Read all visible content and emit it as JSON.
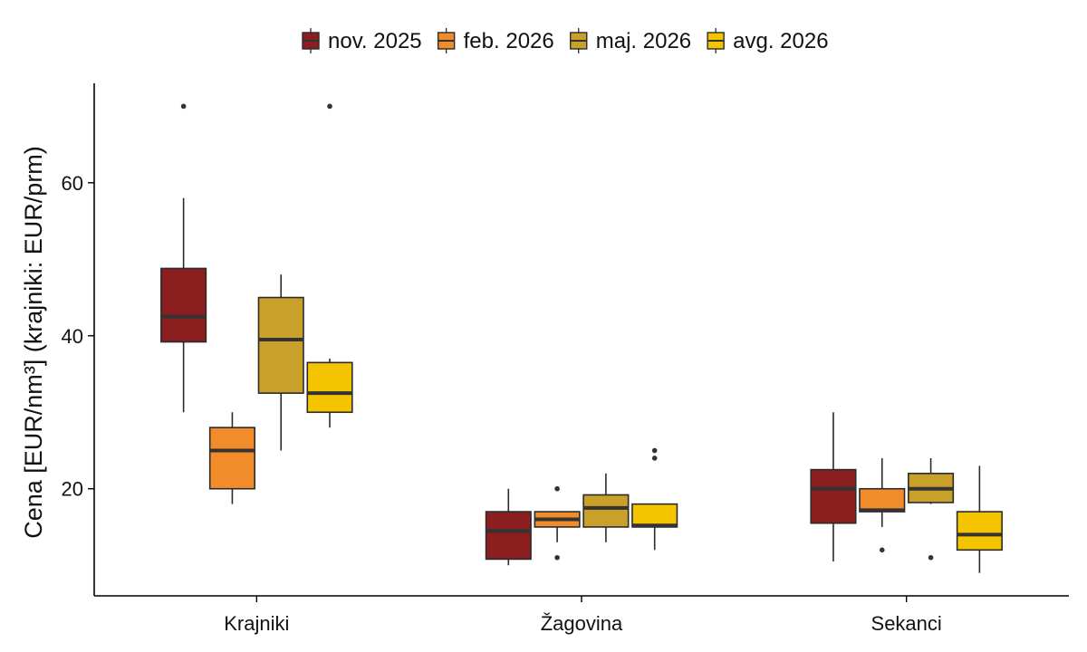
{
  "chart_data": {
    "type": "boxplot",
    "ylabel": "Cena [EUR/nm³] (krajniki: EUR/prm)",
    "xlabel": "",
    "categories": [
      "Krajniki",
      "Žagovina",
      "Sekanci"
    ],
    "ylim": [
      6,
      73
    ],
    "yticks": [
      20,
      40,
      60
    ],
    "grid": false,
    "legend_position": "top",
    "series": [
      {
        "name": "nov. 2025",
        "color": "#8b1e1e",
        "boxes": [
          {
            "whisker_low": 30,
            "q1": 39.2,
            "median": 42.5,
            "q3": 48.8,
            "whisker_high": 58,
            "outliers": [
              70
            ]
          },
          {
            "whisker_low": 10,
            "q1": 10.8,
            "median": 14.5,
            "q3": 17,
            "whisker_high": 20,
            "outliers": []
          },
          {
            "whisker_low": 10.5,
            "q1": 15.5,
            "median": 20,
            "q3": 22.5,
            "whisker_high": 30,
            "outliers": []
          }
        ]
      },
      {
        "name": "feb. 2026",
        "color": "#f28c2b",
        "boxes": [
          {
            "whisker_low": 18,
            "q1": 20,
            "median": 25,
            "q3": 28,
            "whisker_high": 30,
            "outliers": []
          },
          {
            "whisker_low": 13,
            "q1": 15,
            "median": 16,
            "q3": 17,
            "whisker_high": 17,
            "outliers": [
              20,
              11
            ]
          },
          {
            "whisker_low": 15,
            "q1": 17,
            "median": 17.2,
            "q3": 20,
            "whisker_high": 24,
            "outliers": [
              12
            ]
          }
        ]
      },
      {
        "name": "maj. 2026",
        "color": "#c8a02a",
        "boxes": [
          {
            "whisker_low": 25,
            "q1": 32.5,
            "median": 39.5,
            "q3": 45,
            "whisker_high": 48,
            "outliers": []
          },
          {
            "whisker_low": 13,
            "q1": 15,
            "median": 17.5,
            "q3": 19.2,
            "whisker_high": 22,
            "outliers": []
          },
          {
            "whisker_low": 18,
            "q1": 18.2,
            "median": 20,
            "q3": 22,
            "whisker_high": 24,
            "outliers": [
              11
            ]
          }
        ]
      },
      {
        "name": "avg. 2026",
        "color": "#f5c400",
        "boxes": [
          {
            "whisker_low": 28,
            "q1": 30,
            "median": 32.5,
            "q3": 36.5,
            "whisker_high": 37,
            "outliers": [
              70
            ]
          },
          {
            "whisker_low": 12,
            "q1": 15,
            "median": 15.2,
            "q3": 18,
            "whisker_high": 18,
            "outliers": [
              25,
              24
            ]
          },
          {
            "whisker_low": 9,
            "q1": 12,
            "median": 14,
            "q3": 17,
            "whisker_high": 23,
            "outliers": []
          }
        ]
      }
    ]
  }
}
